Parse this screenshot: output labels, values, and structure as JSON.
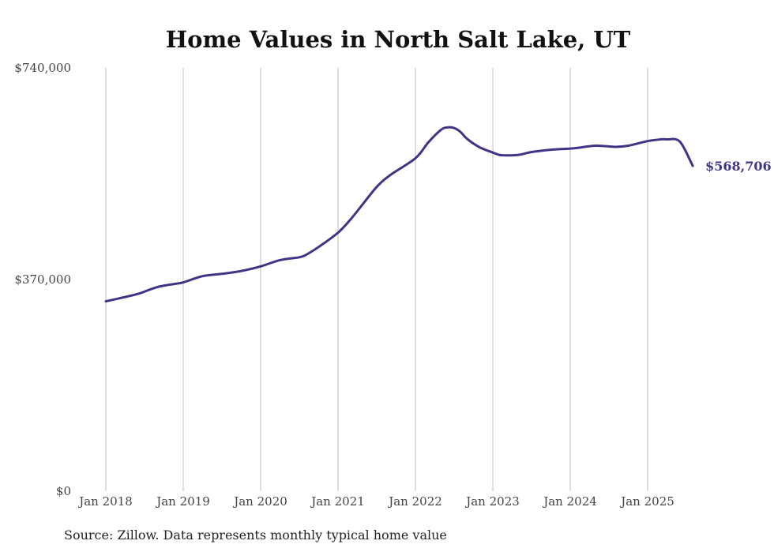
{
  "chart_data": {
    "type": "line",
    "title": "Home Values in North Salt Lake, UT",
    "xlabel": "",
    "ylabel": "",
    "ylim": [
      0,
      740000
    ],
    "y_ticks": [
      {
        "value": 0,
        "label": "$0"
      },
      {
        "value": 370000,
        "label": "$370,000"
      },
      {
        "value": 740000,
        "label": "$740,000"
      }
    ],
    "x_ticks": [
      {
        "value": 2018,
        "label": "Jan 2018"
      },
      {
        "value": 2019,
        "label": "Jan 2019"
      },
      {
        "value": 2020,
        "label": "Jan 2020"
      },
      {
        "value": 2021,
        "label": "Jan 2021"
      },
      {
        "value": 2022,
        "label": "Jan 2022"
      },
      {
        "value": 2023,
        "label": "Jan 2023"
      },
      {
        "value": 2024,
        "label": "Jan 2024"
      },
      {
        "value": 2025,
        "label": "Jan 2025"
      }
    ],
    "xlim": [
      2018,
      2025.583
    ],
    "grid": "vertical",
    "series": [
      {
        "name": "Typical home value",
        "color": "#3d3585",
        "x": [
          2018.0,
          2018.167,
          2018.417,
          2018.667,
          2018.917,
          2019.0,
          2019.25,
          2019.5,
          2019.75,
          2020.0,
          2020.25,
          2020.5,
          2020.583,
          2020.75,
          2021.0,
          2021.167,
          2021.333,
          2021.5,
          2021.667,
          2022.0,
          2022.167,
          2022.333,
          2022.417,
          2022.5,
          2022.583,
          2022.667,
          2022.833,
          2023.0,
          2023.083,
          2023.167,
          2023.333,
          2023.5,
          2023.75,
          2024.0,
          2024.083,
          2024.333,
          2024.583,
          2024.75,
          2025.0,
          2025.167,
          2025.25,
          2025.417,
          2025.583
        ],
        "values": [
          332000,
          337000,
          345000,
          357000,
          363000,
          365000,
          376000,
          380000,
          385000,
          393000,
          404000,
          409000,
          413000,
          427000,
          452000,
          476000,
          504000,
          532000,
          552000,
          582000,
          610000,
          632000,
          636000,
          635000,
          628000,
          616000,
          601000,
          592000,
          588000,
          587000,
          588000,
          593000,
          597000,
          599000,
          600000,
          604000,
          602000,
          604000,
          612000,
          615000,
          615000,
          611000,
          568706
        ]
      }
    ],
    "annotations": [
      {
        "text": "$568,706",
        "x": 2025.583,
        "y": 568706
      }
    ],
    "source": "Source: Zillow. Data represents monthly typical home value"
  }
}
